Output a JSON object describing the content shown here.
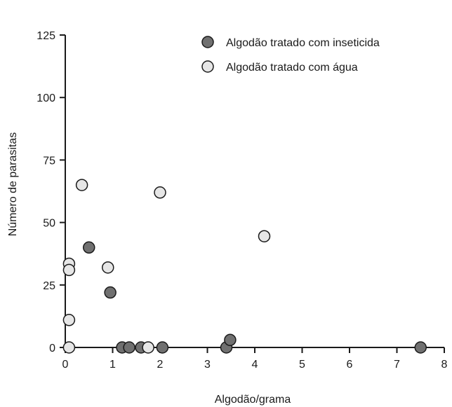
{
  "chart_data": {
    "type": "scatter",
    "title": "",
    "xlabel": "Algodão/grama",
    "ylabel": "Número de parasitas",
    "xlim": [
      0,
      8
    ],
    "ylim": [
      0,
      125
    ],
    "xticks": [
      0,
      1,
      2,
      3,
      4,
      5,
      6,
      7,
      8
    ],
    "yticks": [
      0,
      25,
      50,
      75,
      100,
      125
    ],
    "grid": false,
    "legend_position": "top-right",
    "series": [
      {
        "name": "Algodão tratado com inseticida",
        "color": "#707070",
        "points": [
          {
            "x": 0.5,
            "y": 40
          },
          {
            "x": 0.95,
            "y": 22
          },
          {
            "x": 1.2,
            "y": 0
          },
          {
            "x": 1.35,
            "y": 0
          },
          {
            "x": 1.6,
            "y": 0
          },
          {
            "x": 2.05,
            "y": 0
          },
          {
            "x": 3.4,
            "y": 0
          },
          {
            "x": 3.48,
            "y": 3
          },
          {
            "x": 7.5,
            "y": 0
          }
        ]
      },
      {
        "name": "Algodão tratado com água",
        "color": "#e6e6e6",
        "points": [
          {
            "x": 0.35,
            "y": 65
          },
          {
            "x": 2.0,
            "y": 62
          },
          {
            "x": 4.2,
            "y": 44.5
          },
          {
            "x": 0.08,
            "y": 33.5
          },
          {
            "x": 0.08,
            "y": 31
          },
          {
            "x": 0.9,
            "y": 32
          },
          {
            "x": 0.08,
            "y": 11
          },
          {
            "x": 0.08,
            "y": 0
          },
          {
            "x": 1.75,
            "y": 0
          }
        ]
      }
    ]
  }
}
